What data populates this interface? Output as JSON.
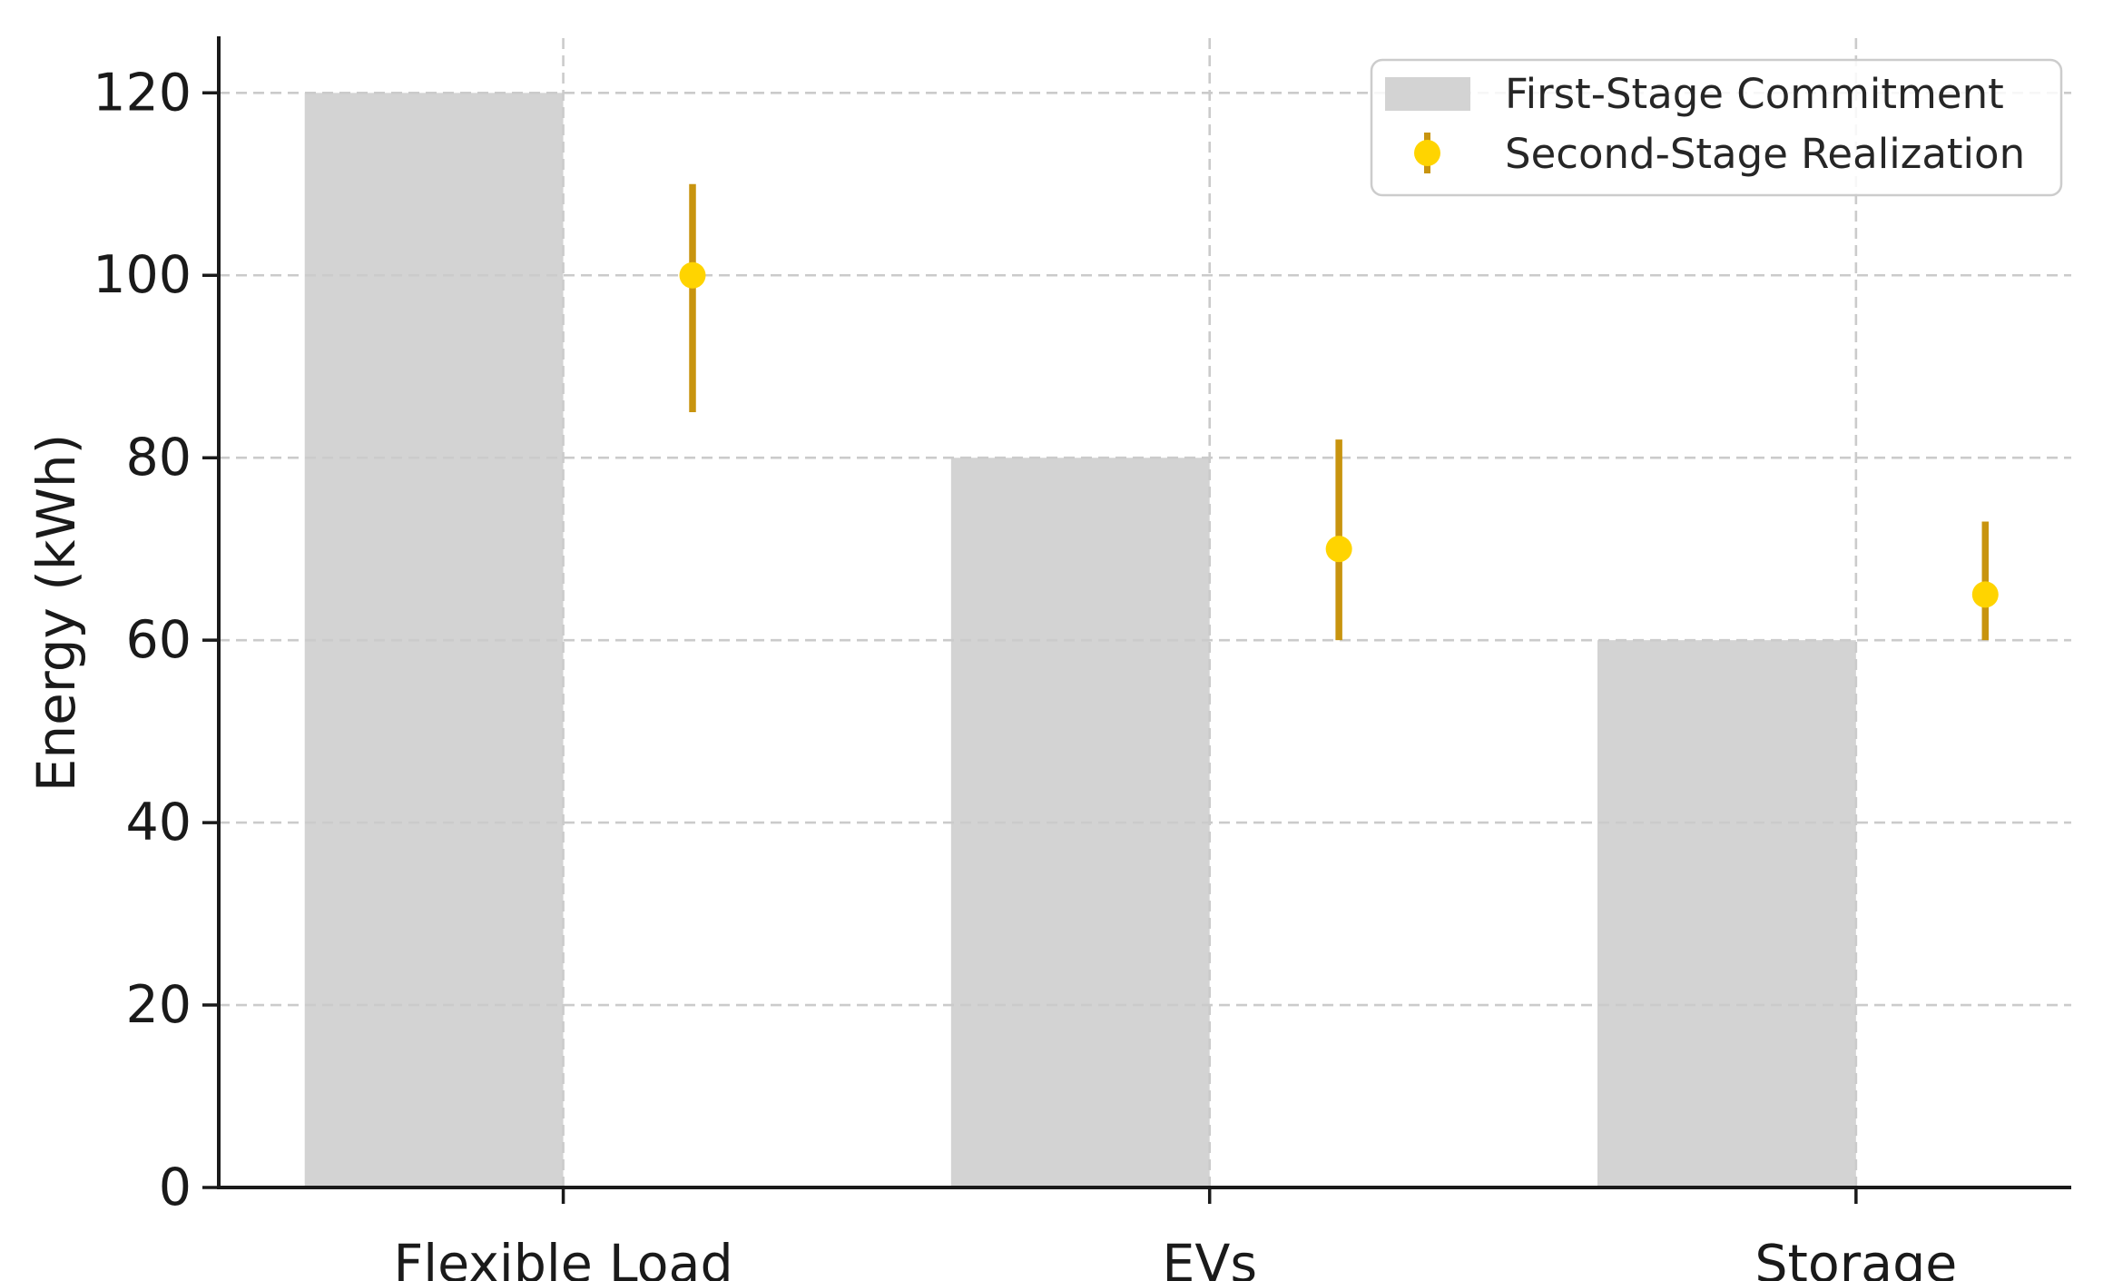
{
  "chart_data": {
    "type": "bar",
    "title": "",
    "xlabel": "",
    "ylabel": "Energy (kWh)",
    "categories": [
      "Flexible Load",
      "EVs",
      "Storage"
    ],
    "series": [
      {
        "name": "First-Stage Commitment",
        "type": "bar",
        "values": [
          120,
          80,
          60
        ],
        "color": "#d3d3d3"
      },
      {
        "name": "Second-Stage Realization",
        "type": "errorbar",
        "values": [
          100,
          70,
          65
        ],
        "error_minus": [
          15,
          10,
          5
        ],
        "error_plus": [
          10,
          12,
          8
        ],
        "marker": "o",
        "marker_color": "#ffd400",
        "line_color": "#c8940f"
      }
    ],
    "yticks": [
      0,
      20,
      40,
      60,
      80,
      100,
      120
    ],
    "ylim": [
      0,
      126
    ],
    "xlim": [
      -0.533,
      2.333
    ],
    "bar_width": 0.4,
    "bar_center_offset": -0.2,
    "errorbar_offset": 0.2,
    "grid": {
      "horizontal": true,
      "vertical": true,
      "line_style": "dashed",
      "color": "#cbcbcb",
      "above_bars": true
    },
    "legend": {
      "position": "upper right"
    },
    "axis_color": "#1a1a1a",
    "text_color": "#262626",
    "background_color": "#ffffff"
  }
}
